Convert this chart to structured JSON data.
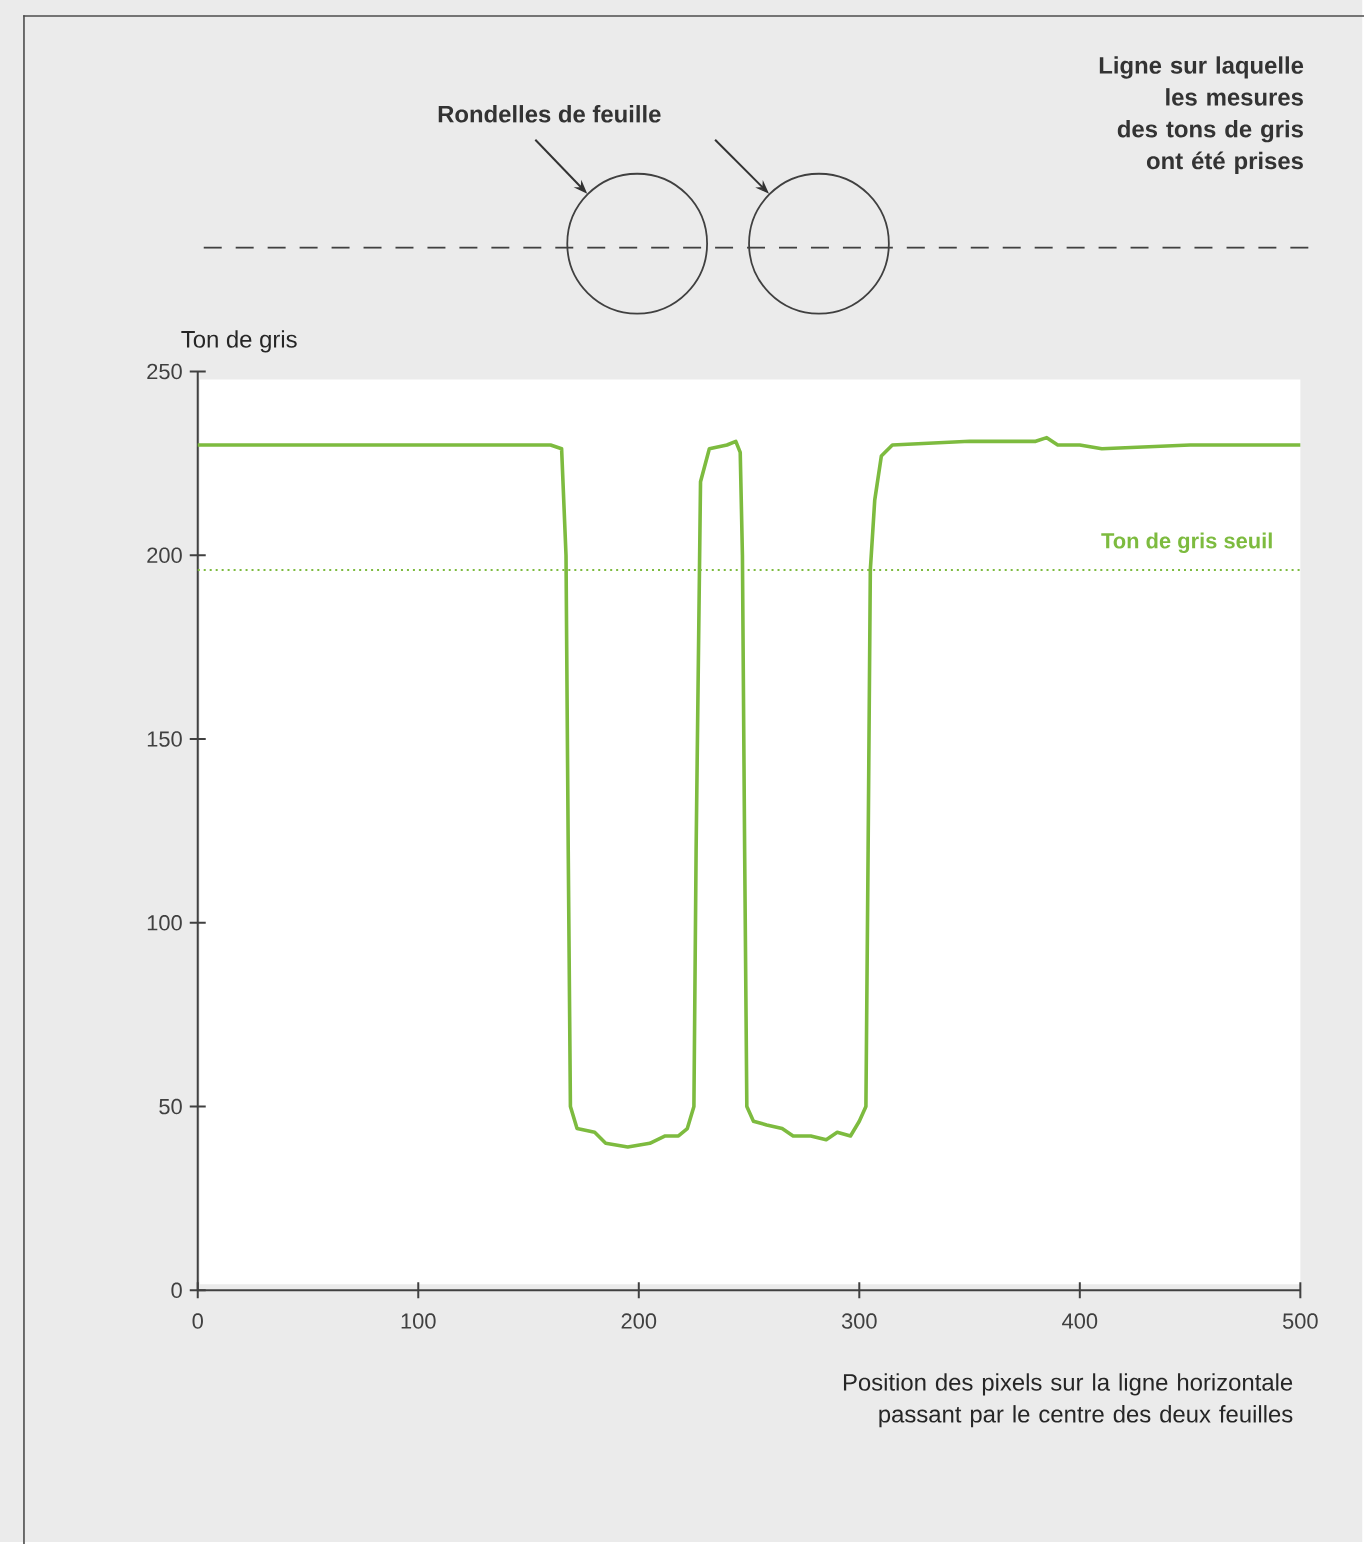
{
  "chart_data": {
    "type": "line",
    "xlabel": "Position des pixels sur la ligne horizontale passant par le centre des deux feuilles",
    "ylabel": "Ton de gris",
    "annotations": [
      "Rondelles de feuille",
      "Ligne sur laquelle les mesures des tons de gris ont été prises"
    ],
    "xlim": [
      0,
      500
    ],
    "ylim": [
      0,
      250
    ],
    "xticks": [
      0,
      100,
      200,
      300,
      400,
      500
    ],
    "yticks": [
      0,
      50,
      100,
      150,
      200,
      250
    ],
    "grid": false,
    "marker": "none",
    "line_style": "solid",
    "ref_lines": [
      {
        "axis": "y",
        "value": 196,
        "label": "Ton de gris seuil",
        "color": "#7dbb3f",
        "line_style": "dotted"
      }
    ],
    "series": [
      {
        "color": "#7dbb3f",
        "x": [
          0,
          100,
          160,
          165,
          167,
          168,
          169,
          172,
          180,
          185,
          195,
          205,
          212,
          218,
          222,
          225,
          226,
          228,
          232,
          240,
          244,
          246,
          247,
          248,
          249,
          252,
          258,
          265,
          270,
          278,
          285,
          290,
          296,
          300,
          303,
          304,
          305,
          307,
          310,
          315,
          350,
          380,
          385,
          390,
          400,
          410,
          450,
          500
        ],
        "values": [
          230,
          230,
          230,
          229,
          200,
          120,
          50,
          44,
          43,
          40,
          39,
          40,
          42,
          42,
          44,
          50,
          120,
          220,
          229,
          230,
          231,
          228,
          200,
          120,
          50,
          46,
          45,
          44,
          42,
          42,
          41,
          43,
          42,
          46,
          50,
          120,
          196,
          215,
          227,
          230,
          231,
          231,
          232,
          230,
          230,
          229,
          230,
          230
        ]
      }
    ]
  }
}
